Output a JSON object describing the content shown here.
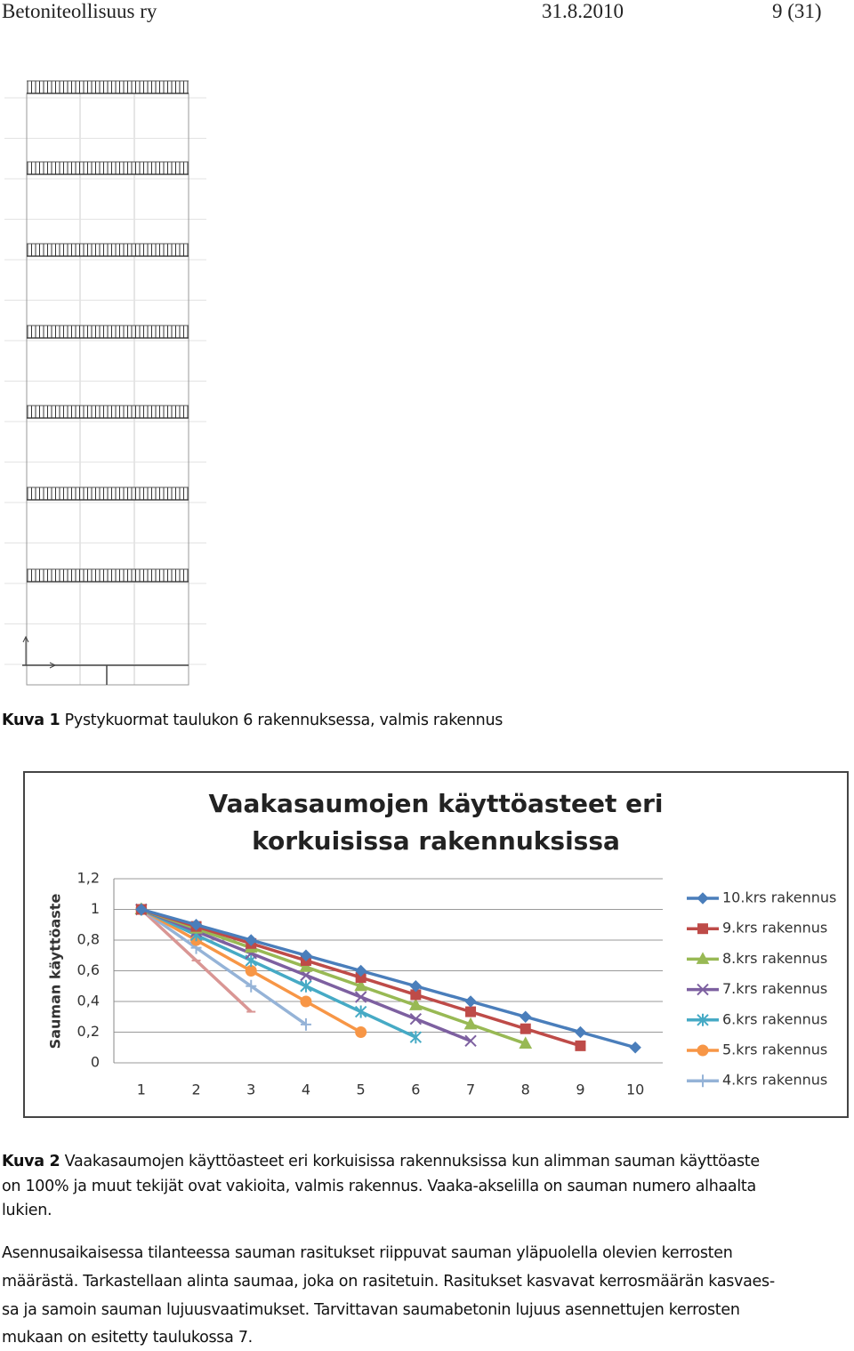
{
  "header": {
    "left": "Betoniteollisuus ry",
    "date": "31.8.2010",
    "page": "9 (31)"
  },
  "figure1": {
    "label": "Kuva 1",
    "caption": "Pystykuormat taulukon 6 rakennuksessa, valmis rakennus"
  },
  "chart_data": {
    "type": "line",
    "title": "Vaakasaumojen käyttöasteet eri korkuisissa rakennuksissa",
    "y_label": "Sauman käyttöaste",
    "categories": [
      1,
      2,
      3,
      4,
      5,
      6,
      7,
      8,
      9,
      10
    ],
    "ylim": [
      0,
      1.2
    ],
    "yticks": [
      0,
      {
        "value": 0.2,
        "label": "0,2"
      },
      {
        "value": 0.4,
        "label": "0,4"
      },
      {
        "value": 0.6,
        "label": "0,6"
      },
      {
        "value": 0.8,
        "label": "0,8"
      },
      1,
      {
        "value": 1.2,
        "label": "1,2"
      }
    ],
    "grid": true,
    "legend": "right",
    "series": [
      {
        "name": "10.krs rakennus",
        "color": "#4a7ebb",
        "marker": "diamond",
        "values": [
          1,
          0.9,
          0.8,
          0.7,
          0.6,
          0.5,
          0.4,
          0.3,
          0.2,
          0.1
        ]
      },
      {
        "name": "9.krs rakennus",
        "color": "#be4b48",
        "marker": "square",
        "values": [
          1,
          0.889,
          0.778,
          0.667,
          0.556,
          0.444,
          0.333,
          0.222,
          0.111,
          null
        ]
      },
      {
        "name": "8.krs rakennus",
        "color": "#98b954",
        "marker": "triangle",
        "values": [
          1,
          0.875,
          0.75,
          0.625,
          0.5,
          0.375,
          0.25,
          0.125,
          null,
          null
        ]
      },
      {
        "name": "7.krs rakennus",
        "color": "#7d60a0",
        "marker": "x",
        "values": [
          1,
          0.857,
          0.714,
          0.571,
          0.429,
          0.286,
          0.143,
          null,
          null,
          null
        ]
      },
      {
        "name": "6.krs rakennus",
        "color": "#46aac5",
        "marker": "star",
        "values": [
          1,
          0.833,
          0.667,
          0.5,
          0.333,
          0.167,
          null,
          null,
          null,
          null
        ]
      },
      {
        "name": "5.krs rakennus",
        "color": "#f79646",
        "marker": "circle",
        "values": [
          1,
          0.8,
          0.6,
          0.4,
          0.2,
          null,
          null,
          null,
          null,
          null
        ]
      },
      {
        "name": "4.krs rakennus",
        "color": "#95b3d7",
        "marker": "plus",
        "values": [
          1,
          0.75,
          0.5,
          0.25,
          null,
          null,
          null,
          null,
          null,
          null
        ]
      },
      {
        "color": "#d99694",
        "marker": "dash",
        "values": [
          1,
          0.667,
          0.333,
          null,
          null,
          null,
          null,
          null,
          null,
          null
        ]
      }
    ]
  },
  "figure2": {
    "label": "Kuva 2",
    "lines": [
      "Vaakasaumojen käyttöasteet eri korkuisissa rakennuksissa kun alimman sauman käyttöaste",
      "on 100% ja muut tekijät ovat vakioita, valmis rakennus. Vaaka-akselilla on sauman numero alhaalta",
      "lukien."
    ]
  },
  "paragraph": {
    "lines": [
      "Asennusaikaisessa tilanteessa sauman rasitukset riippuvat sauman yläpuolella olevien kerrosten",
      "määrästä. Tarkastellaan alinta saumaa, joka on rasitetuin. Rasitukset kasvavat kerrosmäärän kasvaes-",
      "sa ja samoin sauman lujuusvaatimukset. Tarvittavan saumabetonin lujuus asennettujen kerrosten",
      "mukaan on esitetty taulukossa 7."
    ]
  }
}
